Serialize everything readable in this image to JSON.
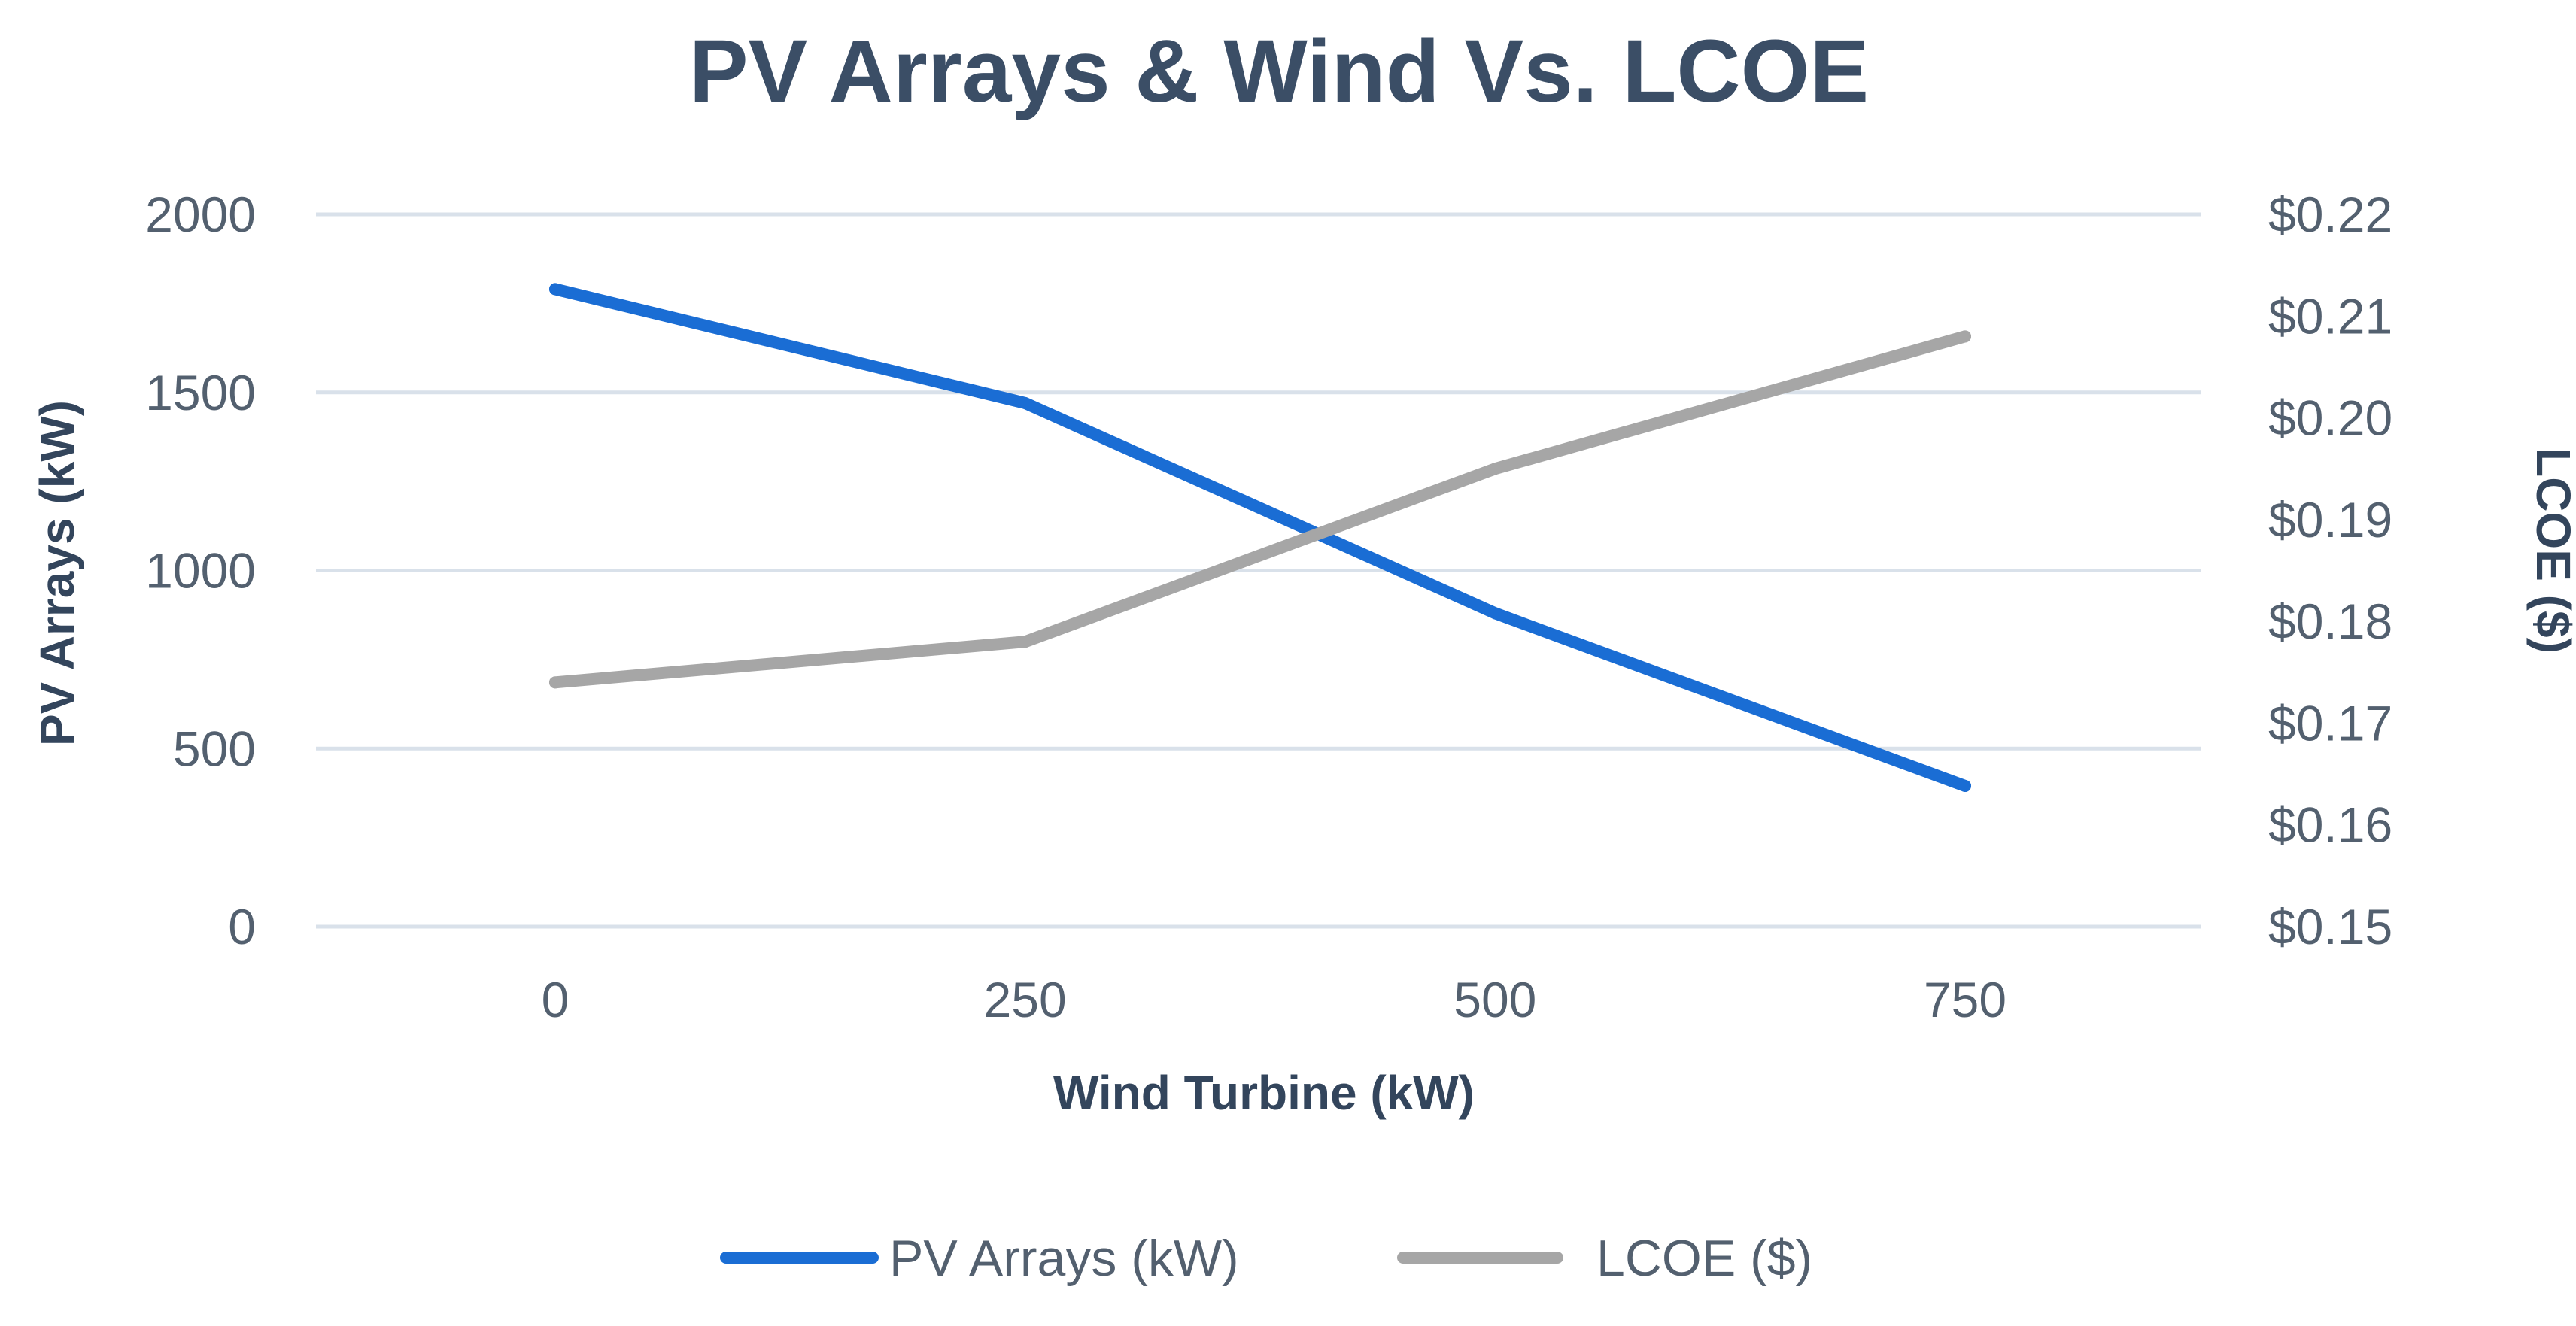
{
  "chart_data": {
    "type": "line",
    "title": "PV Arrays & Wind  Vs. LCOE",
    "xlabel": "Wind Turbine (kW)",
    "ylabel": "PV Arrays (kW)",
    "y2label": "LCOE ($)",
    "categories": [
      "0",
      "250",
      "500",
      "750"
    ],
    "x": [
      0,
      250,
      500,
      750
    ],
    "ylim": [
      0,
      2000
    ],
    "y_ticks": [
      "0",
      "500",
      "1000",
      "1500",
      "2000"
    ],
    "y2lim": [
      0.15,
      0.22
    ],
    "y2_ticks": [
      "$0.15",
      "$0.16",
      "$0.17",
      "$0.18",
      "$0.19",
      "$0.20",
      "$0.21",
      "$0.22"
    ],
    "grid": true,
    "legend_position": "bottom",
    "series": [
      {
        "name": "PV Arrays  (kW)",
        "axis": "left",
        "color": "#1a6dd4",
        "values": [
          1790,
          1470,
          880,
          395
        ]
      },
      {
        "name": "LCOE ($)",
        "axis": "right",
        "color": "#a6a6a6",
        "values": [
          0.174,
          0.178,
          0.195,
          0.208
        ]
      }
    ]
  }
}
